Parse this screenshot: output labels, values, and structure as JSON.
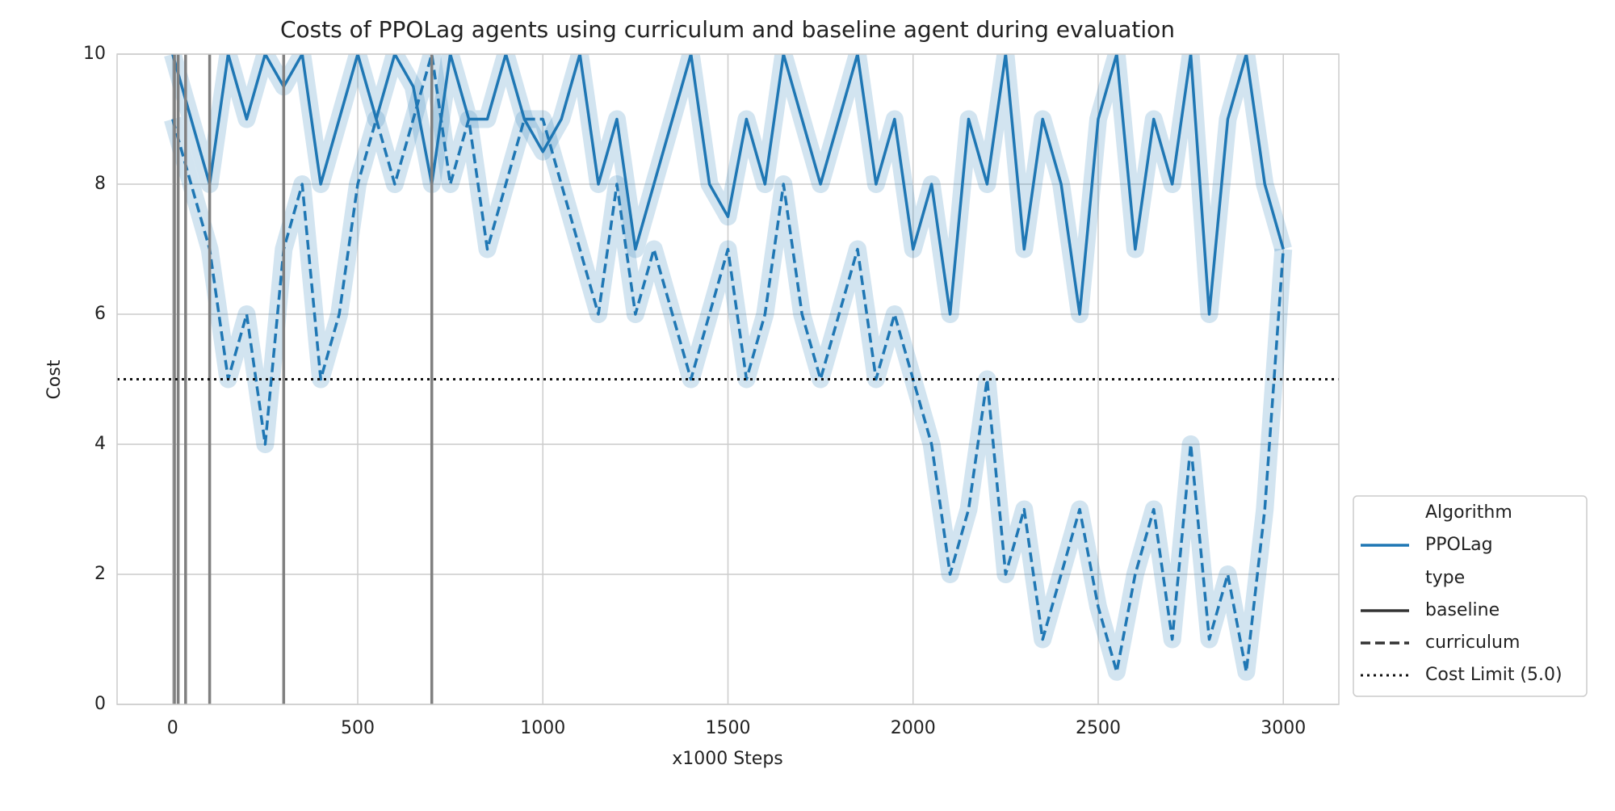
{
  "chart_data": {
    "type": "line",
    "title": "Costs of PPOLag agents using curriculum and baseline agent during evaluation",
    "xlabel": "x1000 Steps",
    "ylabel": "Cost",
    "x": [
      0,
      50,
      100,
      150,
      200,
      250,
      300,
      350,
      400,
      450,
      500,
      550,
      600,
      650,
      700,
      750,
      800,
      850,
      900,
      950,
      1000,
      1050,
      1100,
      1150,
      1200,
      1250,
      1300,
      1350,
      1400,
      1450,
      1500,
      1550,
      1600,
      1650,
      1700,
      1750,
      1800,
      1850,
      1900,
      1950,
      2000,
      2050,
      2100,
      2150,
      2200,
      2250,
      2300,
      2350,
      2400,
      2450,
      2500,
      2550,
      2600,
      2650,
      2700,
      2750,
      2800,
      2850,
      2900,
      2950,
      3000
    ],
    "hue": {
      "title": "Algorithm",
      "name": "PPOLag",
      "color": "#1f77b4"
    },
    "style_title": "type",
    "series": [
      {
        "name": "baseline",
        "dash": "solid",
        "values": [
          10,
          9,
          8,
          10,
          9,
          10,
          9.5,
          10,
          8,
          9,
          10,
          9,
          10,
          9.5,
          8,
          10,
          9,
          9,
          10,
          9,
          8.5,
          9,
          10,
          8,
          9,
          7,
          8,
          9,
          10,
          8,
          7.5,
          9,
          8,
          10,
          9,
          8,
          9,
          10,
          8,
          9,
          7,
          8,
          6,
          9,
          8,
          10,
          7,
          9,
          8,
          6,
          9,
          10,
          7,
          9,
          8,
          10,
          6,
          9,
          10,
          8,
          7
        ]
      },
      {
        "name": "curriculum",
        "dash": "dashed",
        "values": [
          9,
          8,
          7,
          5,
          6,
          4,
          7,
          8,
          5,
          6,
          8,
          9,
          8,
          9,
          10,
          8,
          9,
          7,
          8,
          9,
          9,
          8,
          7,
          6,
          8,
          6,
          7,
          6,
          5,
          6,
          7,
          5,
          6,
          8,
          6,
          5,
          6,
          7,
          5,
          6,
          5,
          4,
          2,
          3,
          5,
          2,
          3,
          1,
          2,
          3,
          1.5,
          0.5,
          2,
          3,
          1,
          4,
          1,
          2,
          0.5,
          3,
          7
        ]
      }
    ],
    "cost_limit": {
      "value": 5,
      "label": "Cost Limit (5.0)"
    },
    "vlines": {
      "values": [
        5,
        15,
        35,
        100,
        300,
        700
      ],
      "color": "#808080"
    },
    "xlim": [
      -150,
      3150
    ],
    "ylim": [
      0,
      10
    ],
    "xticks": [
      0,
      500,
      1000,
      1500,
      2000,
      2500,
      3000
    ],
    "yticks": [
      0,
      2,
      4,
      6,
      8,
      10
    ],
    "grid": true
  }
}
